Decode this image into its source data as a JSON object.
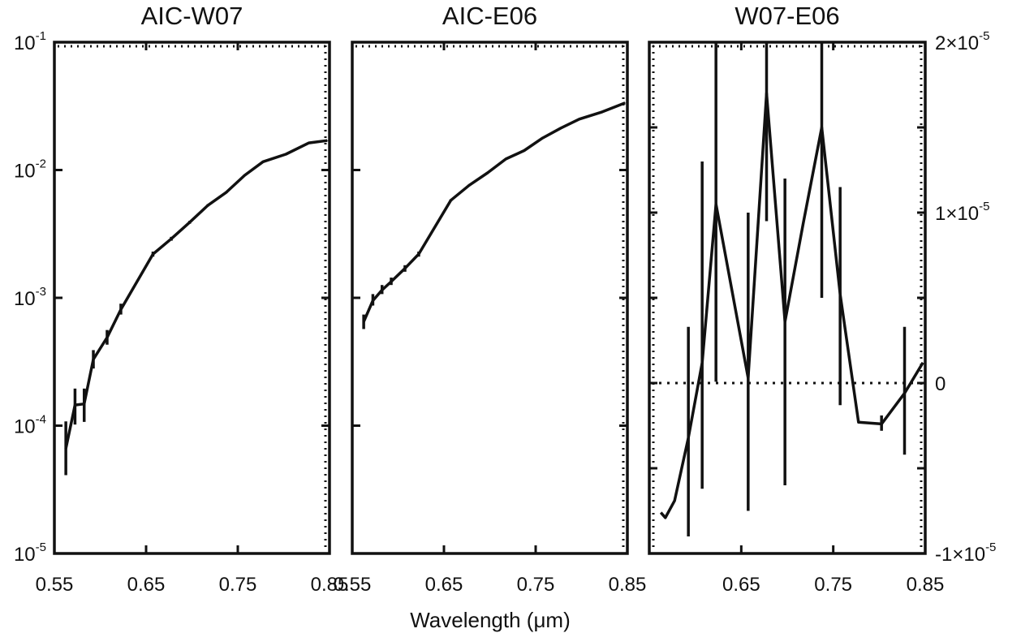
{
  "chart_data": [
    {
      "type": "line",
      "title": "AIC-W07",
      "xlim": [
        0.55,
        0.85
      ],
      "ylim": [
        1e-05,
        0.1
      ],
      "yscale": "log",
      "x_ticks": [
        "0.55",
        "0.65",
        "0.75",
        "0.85"
      ],
      "y_ticks": [
        {
          "base": "10",
          "exp": "-5"
        },
        {
          "base": "10",
          "exp": "-4"
        },
        {
          "base": "10",
          "exp": "-3"
        },
        {
          "base": "10",
          "exp": "-2"
        },
        {
          "base": "10",
          "exp": "-1"
        }
      ],
      "x": [
        0.5625,
        0.5725,
        0.5825,
        0.5925,
        0.6075,
        0.6225,
        0.6575,
        0.6775,
        0.6975,
        0.7175,
        0.7375,
        0.7575,
        0.7775,
        0.8025,
        0.8275,
        0.8475
      ],
      "y": [
        6.6e-05,
        0.000145,
        0.000148,
        0.00033,
        0.00049,
        0.00081,
        0.0022,
        0.0029,
        0.0039,
        0.0053,
        0.0067,
        0.0091,
        0.0116,
        0.0133,
        0.0163,
        0.017
      ],
      "err_low": [
        4.1e-05,
        0.000102,
        0.000107,
        0.00028,
        0.00043,
        0.00074,
        0.0021,
        0.0028,
        0.0038,
        0.0052,
        0.0066,
        0.009,
        0.0115,
        0.0132,
        0.0162,
        0.0169
      ],
      "err_high": [
        0.000108,
        0.000195,
        0.000195,
        0.00039,
        0.00056,
        0.0009,
        0.0023,
        0.003,
        0.004,
        0.0054,
        0.0068,
        0.0092,
        0.0117,
        0.0134,
        0.0164,
        0.0171
      ]
    },
    {
      "type": "line",
      "title": "AIC-E06",
      "xlim": [
        0.55,
        0.85
      ],
      "ylim": [
        1e-05,
        0.1
      ],
      "yscale": "log",
      "x_ticks": [
        "0.55",
        "0.65",
        "0.75",
        "0.85"
      ],
      "x": [
        0.5625,
        0.5725,
        0.5825,
        0.5925,
        0.6075,
        0.6225,
        0.6575,
        0.6775,
        0.6975,
        0.7175,
        0.7375,
        0.7575,
        0.7775,
        0.7975,
        0.8225,
        0.8475
      ],
      "y": [
        0.00065,
        0.00095,
        0.00115,
        0.00134,
        0.0017,
        0.0022,
        0.0058,
        0.0076,
        0.0095,
        0.0122,
        0.0142,
        0.0178,
        0.0213,
        0.025,
        0.0285,
        0.0335
      ],
      "err_low": [
        0.00057,
        0.00087,
        0.00107,
        0.00126,
        0.0016,
        0.0021,
        0.0057,
        0.0075,
        0.0094,
        0.0121,
        0.0141,
        0.0177,
        0.0212,
        0.0249,
        0.0284,
        0.0334
      ],
      "err_high": [
        0.00074,
        0.00107,
        0.00126,
        0.00144,
        0.0018,
        0.0023,
        0.0059,
        0.0077,
        0.0096,
        0.0123,
        0.0143,
        0.0179,
        0.0214,
        0.0251,
        0.0286,
        0.0336
      ]
    },
    {
      "type": "line",
      "title": "W07-E06",
      "xlim": [
        0.55,
        0.85
      ],
      "ylim": [
        -1e-05,
        2e-05
      ],
      "yscale": "linear",
      "y_axis_side": "right",
      "reference_line": 0,
      "x_ticks": [
        "0.65",
        "0.75",
        "0.85"
      ],
      "y_ticks": [
        {
          "value": 2e-05,
          "mantissa": "2",
          "times": "×",
          "base": "10",
          "exp": "-5"
        },
        {
          "value": 1e-05,
          "mantissa": "1",
          "times": "×",
          "base": "10",
          "exp": "-5"
        },
        {
          "value": 0,
          "mantissa": "0"
        },
        {
          "value": -1e-05,
          "mantissa": "-1",
          "times": "×",
          "base": "10",
          "exp": "-5"
        }
      ],
      "x": [
        0.5625,
        0.5675,
        0.5775,
        0.5925,
        0.6075,
        0.6225,
        0.6575,
        0.6775,
        0.6975,
        0.7175,
        0.7375,
        0.7575,
        0.7775,
        0.8025,
        0.8275,
        0.8475
      ],
      "y": [
        -7.6e-06,
        -7.9e-06,
        -6.9e-06,
        -3.2e-06,
        1.2e-06,
        1.05e-05,
        3e-07,
        1.7e-05,
        3.6e-06,
        9.4e-06,
        1.5e-05,
        5.2e-06,
        -2.3e-06,
        -2.4e-06,
        -6e-07,
        1.2e-06
      ],
      "err_low": [
        null,
        null,
        null,
        -9e-06,
        -6.2e-06,
        8e-08,
        -7.5e-06,
        9.5e-06,
        -6e-06,
        null,
        5e-06,
        -1.3e-06,
        null,
        -2.8e-06,
        -4.2e-06,
        null
      ],
      "err_high": [
        null,
        null,
        null,
        3.3e-06,
        1.3e-05,
        2e-05,
        1e-05,
        2e-05,
        1.2e-05,
        1.4e-05,
        2e-05,
        1.15e-05,
        null,
        -1.9e-06,
        3.3e-06,
        null
      ]
    }
  ],
  "xlabel": "Wavelength (μm)"
}
